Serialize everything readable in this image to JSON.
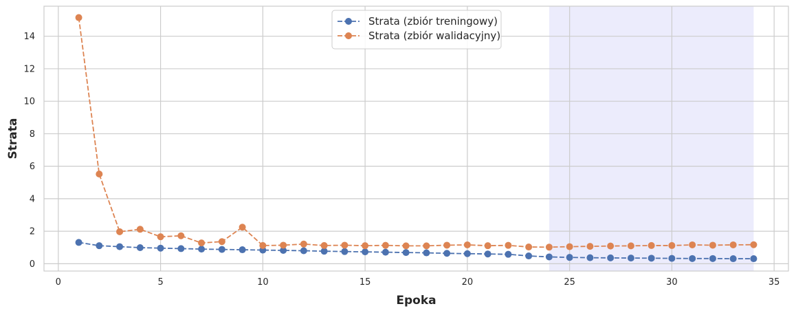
{
  "chart_data": {
    "type": "line",
    "xlabel": "Epoka",
    "ylabel": "Strata",
    "xlim": [
      -0.7,
      35.7
    ],
    "ylim": [
      -0.45,
      15.85
    ],
    "xticks": [
      0,
      5,
      10,
      15,
      20,
      25,
      30,
      35
    ],
    "yticks": [
      0,
      2,
      4,
      6,
      8,
      10,
      12,
      14
    ],
    "grid": true,
    "legend_position": "top-center",
    "highlight_span": [
      24,
      34
    ],
    "colors": {
      "train": "#4c72b0",
      "val": "#dd8452",
      "span": "#e9e9fb",
      "grid": "#cccccc",
      "frame": "#cccccc"
    },
    "x": [
      1,
      2,
      3,
      4,
      5,
      6,
      7,
      8,
      9,
      10,
      11,
      12,
      13,
      14,
      15,
      16,
      17,
      18,
      19,
      20,
      21,
      22,
      23,
      24,
      25,
      26,
      27,
      28,
      29,
      30,
      31,
      32,
      33,
      34
    ],
    "series": [
      {
        "name": "Strata (zbiór treningowy)",
        "color_key": "train",
        "values": [
          1.31,
          1.11,
          1.05,
          0.99,
          0.96,
          0.93,
          0.9,
          0.88,
          0.86,
          0.84,
          0.82,
          0.8,
          0.77,
          0.75,
          0.73,
          0.71,
          0.69,
          0.67,
          0.64,
          0.62,
          0.6,
          0.58,
          0.48,
          0.42,
          0.39,
          0.37,
          0.36,
          0.35,
          0.34,
          0.33,
          0.32,
          0.32,
          0.31,
          0.31
        ]
      },
      {
        "name": "Strata (zbiór walidacyjny)",
        "color_key": "val",
        "values": [
          15.15,
          5.52,
          1.97,
          2.12,
          1.66,
          1.72,
          1.28,
          1.36,
          2.25,
          1.12,
          1.14,
          1.21,
          1.12,
          1.14,
          1.11,
          1.13,
          1.1,
          1.1,
          1.14,
          1.16,
          1.11,
          1.13,
          1.03,
          1.02,
          1.05,
          1.07,
          1.09,
          1.1,
          1.12,
          1.12,
          1.16,
          1.14,
          1.16,
          1.17
        ]
      }
    ]
  }
}
